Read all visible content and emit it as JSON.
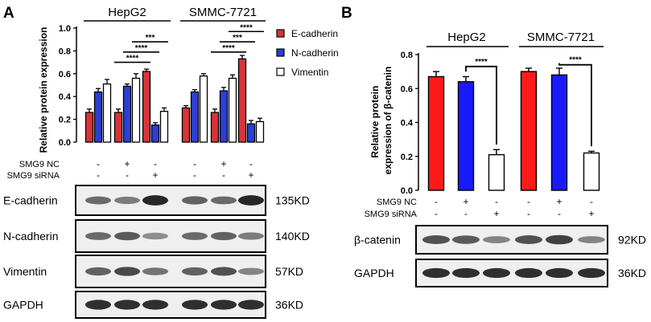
{
  "panels": {
    "A": {
      "letter": "A",
      "cell_lines": [
        "HepG2",
        "SMMC-7721"
      ],
      "legend": [
        "E-cadherin",
        "N-cadherin",
        "Vimentin"
      ],
      "treatment_rows": [
        {
          "label": "SMG9 NC",
          "marks": [
            "-",
            "+",
            "-",
            "-",
            "+",
            "-"
          ]
        },
        {
          "label": "SMG9 siRNA",
          "marks": [
            "-",
            "-",
            "+",
            "-",
            "-",
            "+"
          ]
        }
      ],
      "blots": [
        {
          "label": "E-cadherin",
          "size": "135KD"
        },
        {
          "label": "N-cadherin",
          "size": "140KD"
        },
        {
          "label": "Vimentin",
          "size": "57KD"
        },
        {
          "label": "GAPDH",
          "size": "36KD"
        }
      ]
    },
    "B": {
      "letter": "B",
      "cell_lines": [
        "HepG2",
        "SMMC-7721"
      ],
      "treatment_rows": [
        {
          "label": "SMG9 NC",
          "marks": [
            "-",
            "+",
            "-",
            "-",
            "+",
            "-"
          ]
        },
        {
          "label": "SMG9 siRNA",
          "marks": [
            "-",
            "-",
            "+",
            "-",
            "-",
            "+"
          ]
        }
      ],
      "blots": [
        {
          "label": "β-catenin",
          "size": "92KD"
        },
        {
          "label": "GAPDH",
          "size": "36KD"
        }
      ]
    }
  },
  "colors": {
    "E-cadherin": "#d8343a",
    "N-cadherin": "#2c3fd6",
    "Vimentin": "#ffffff",
    "B_bars": [
      "#ff1a1a",
      "#1a1aff",
      "#ffffff"
    ]
  },
  "chart_data": [
    {
      "type": "bar",
      "panel": "A",
      "ylabel": "Relative protein expression",
      "ylim": [
        0,
        1.0
      ],
      "yticks": [
        "0.0",
        "0.2",
        "0.4",
        "0.6",
        "0.8",
        "1.0"
      ],
      "groups": 6,
      "series": [
        {
          "name": "E-cadherin",
          "values": [
            0.26,
            0.26,
            0.62,
            0.3,
            0.26,
            0.73
          ],
          "errors": [
            0.03,
            0.03,
            0.02,
            0.02,
            0.03,
            0.03
          ]
        },
        {
          "name": "N-cadherin",
          "values": [
            0.44,
            0.49,
            0.15,
            0.44,
            0.45,
            0.16
          ],
          "errors": [
            0.03,
            0.02,
            0.02,
            0.02,
            0.03,
            0.03
          ]
        },
        {
          "name": "Vimentin",
          "values": [
            0.51,
            0.56,
            0.27,
            0.58,
            0.56,
            0.18
          ],
          "errors": [
            0.04,
            0.04,
            0.03,
            0.02,
            0.03,
            0.03
          ]
        }
      ],
      "significance": [
        {
          "label": "****",
          "from_group": 1,
          "from_series": 0,
          "to_group": 2,
          "to_series": 0,
          "y": 0.7
        },
        {
          "label": "****",
          "from_group": 1,
          "from_series": 1,
          "to_group": 2,
          "to_series": 1,
          "y": 0.79
        },
        {
          "label": "***",
          "from_group": 1,
          "from_series": 2,
          "to_group": 2,
          "to_series": 2,
          "y": 0.88
        },
        {
          "label": "****",
          "from_group": 4,
          "from_series": 0,
          "to_group": 5,
          "to_series": 0,
          "y": 0.79
        },
        {
          "label": "***",
          "from_group": 4,
          "from_series": 1,
          "to_group": 5,
          "to_series": 1,
          "y": 0.88
        },
        {
          "label": "****",
          "from_group": 4,
          "from_series": 2,
          "to_group": 5,
          "to_series": 2,
          "y": 0.97
        }
      ]
    },
    {
      "type": "bar",
      "panel": "B",
      "ylabel": [
        "Relative protein",
        "expression of β-catenin"
      ],
      "ylim": [
        0,
        0.8
      ],
      "yticks": [
        "0.0",
        "0.2",
        "0.4",
        "0.6",
        "0.8"
      ],
      "values": [
        0.67,
        0.64,
        0.21,
        0.7,
        0.68,
        0.22
      ],
      "errors": [
        0.03,
        0.03,
        0.03,
        0.02,
        0.04,
        0.01
      ],
      "significance": [
        {
          "label": "****",
          "from_bar": 1,
          "to_bar": 2,
          "y": 0.73
        },
        {
          "label": "****",
          "from_bar": 4,
          "to_bar": 5,
          "y": 0.74
        }
      ]
    }
  ]
}
